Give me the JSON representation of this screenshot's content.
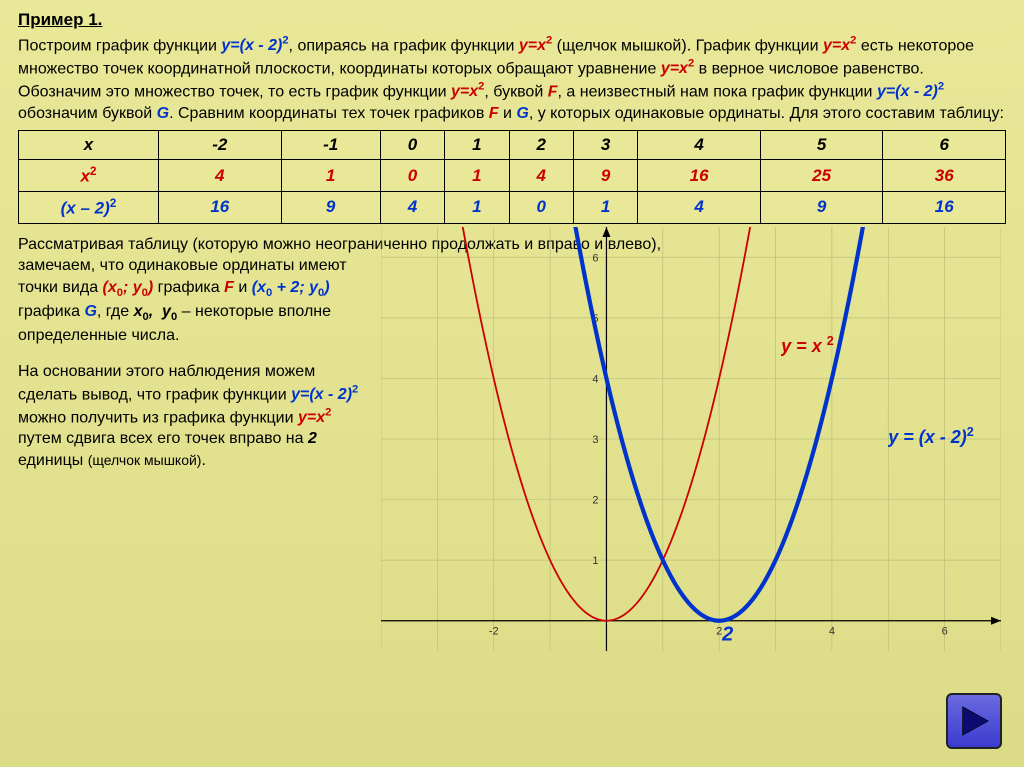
{
  "title": "Пример 1.",
  "intro_html": "Построим график функции <span class='blue em'>y=(x - 2)<sup>2</sup></span>, опираясь на график функции <span class='red em'>y=x<sup>2</sup></span> (щелчок мышкой). График функции <span class='red em'>y=x<sup>2</sup></span> есть некоторое множество точек координатной плоскости, координаты которых обращают уравнение <span class='red em'>y=x<sup>2</sup></span> в верное числовое равенство. Обозначим это множество точек, то есть график функции <span class='red em'>y=x<sup>2</sup></span>, буквой <span class='red em'>F</span>, а неизвестный нам пока график функции <span class='blue em'>y=(x - 2)<sup>2</sup></span> обозначим буквой <span class='blue em'>G</span>. Сравним координаты тех точек графиков <span class='red em'>F</span> и <span class='blue em'>G</span>, у которых одинаковые ординаты. Для этого составим таблицу:",
  "table": {
    "headers": [
      "x",
      "x<sup>2</sup>",
      "(x – 2)<sup>2</sup>"
    ],
    "columns": [
      "-2",
      "-1",
      "0",
      "1",
      "2",
      "3",
      "4",
      "5",
      "6"
    ],
    "row1": [
      4,
      1,
      0,
      1,
      4,
      9,
      16,
      25,
      36
    ],
    "row2": [
      16,
      9,
      4,
      1,
      0,
      1,
      4,
      9,
      16
    ]
  },
  "para_top_html": "Рассматривая таблицу (которую можно неограниченно продолжать и вправо и влево),",
  "para2_html": "замечаем, что одинаковые ординаты имеют точки вида <span class='red em'>(x<sub>0</sub>; y<sub>0</sub>)</span> графика <span class='red em'>F</span> и <span class='blue em'>(x<sub>0</sub> + 2; y<sub>0</sub>)</span> графика <span class='blue em'>G</span>, где <span class='em'>x<sub>0</sub>, &nbsp;y<sub>0</sub></span> – некоторые вполне определенные числа.",
  "para3_html": "На основании этого наблюдения можем сделать вывод, что график функции <span class='blue em'>y=(x - 2)<sup>2</sup></span> можно получить из графика функции <span class='red em'>y=x<sup>2</sup></span> путем сдвига всех его точек вправо на <span class='em'>2</span> единицы <span style='font-size:14px'>(щелчок мышкой)</span>.",
  "chart": {
    "xlim": [
      -4,
      7
    ],
    "ylim": [
      -0.5,
      6.5
    ],
    "xticks": [
      -2,
      2,
      4,
      6
    ],
    "yticks": [
      1,
      2,
      3,
      4,
      5,
      6
    ],
    "grid_color": "#bdbd78",
    "axis_color": "#000000",
    "bg_color": "transparent",
    "curves": [
      {
        "name": "f",
        "formula": "x^2",
        "color": "#cc0000",
        "width": 1.8,
        "label_html": "y = x <sup>2</sup>",
        "label_pos": {
          "x": 3.1,
          "y": 4.5
        }
      },
      {
        "name": "g",
        "formula": "(x-2)^2",
        "color": "#0033cc",
        "width": 4.2,
        "label_html": "y = (x - 2)<sup>2</sup>",
        "label_pos": {
          "x": 5.0,
          "y": 3.0
        }
      }
    ],
    "vertex_marker": {
      "x": 2,
      "color": "#0033cc",
      "label": "2"
    }
  }
}
